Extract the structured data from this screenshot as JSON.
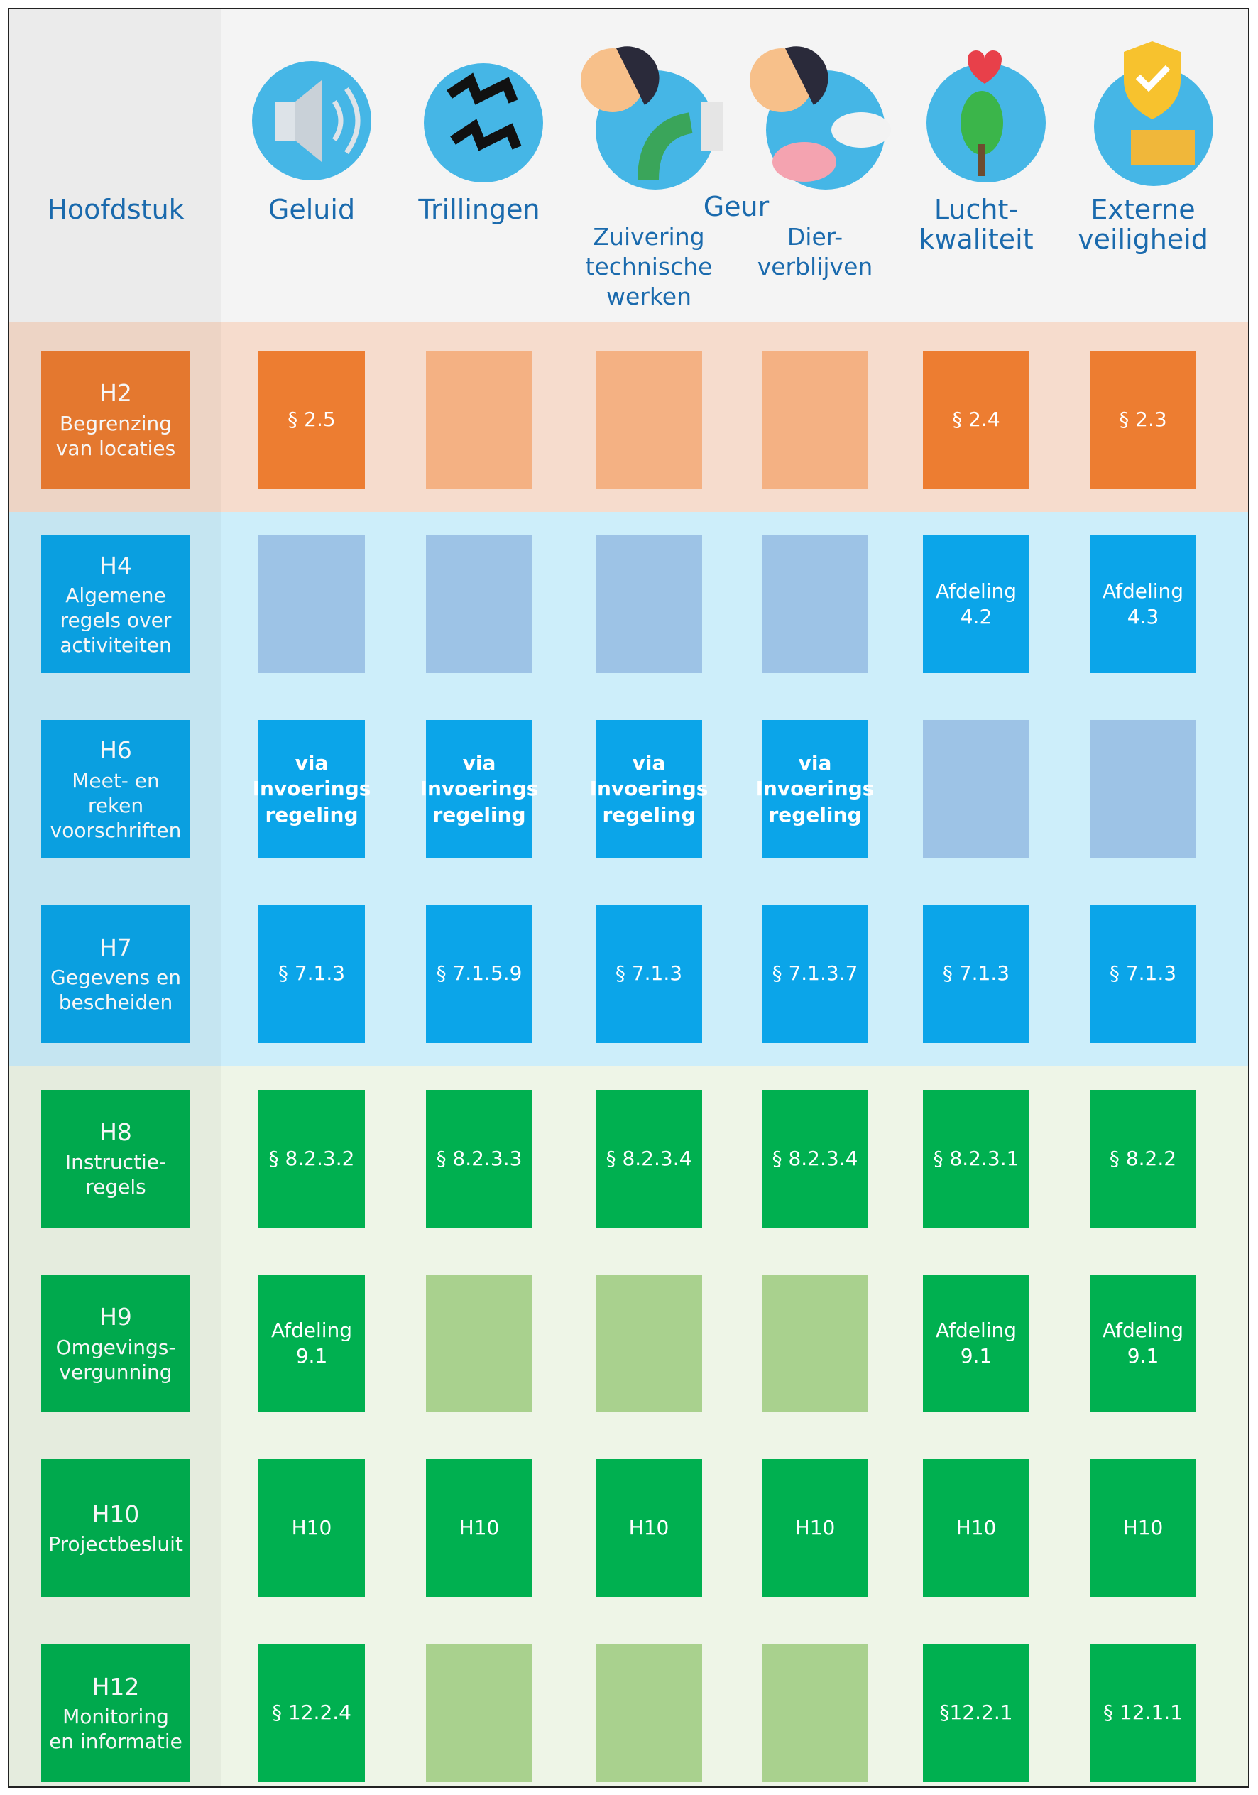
{
  "header": {
    "chapter_label": "Hoofdstuk",
    "group_label": "Geur",
    "columns": [
      "Geluid",
      "Trillingen",
      "Zuivering\ntechnische\nwerken",
      "Dier-\nverblijven",
      "Lucht-\nkwaliteit",
      "Externe\nveiligheid"
    ]
  },
  "sections": [
    {
      "band_color": "#f6dccd",
      "dark": "#ed7d31",
      "light": "#f4b183",
      "rows": [
        {
          "code": "H2",
          "label": "Begrenzing\nvan locaties",
          "cells": [
            "§ 2.5",
            null,
            null,
            null,
            "§ 2.4",
            "§ 2.3"
          ]
        }
      ]
    },
    {
      "band_color": "#cdeefa",
      "dark": "#0ba5e9",
      "light": "#9dc3e6",
      "rows": [
        {
          "code": "H4",
          "label": "Algemene\nregels over\nactiviteiten",
          "cells": [
            null,
            null,
            null,
            null,
            "Afdeling\n4.2",
            "Afdeling\n4.3"
          ]
        },
        {
          "code": "H6",
          "label": "Meet- en\nreken\nvoorschriften",
          "font_weight": "bold",
          "cells": [
            "via\nInvoerings\nregeling",
            "via\nInvoerings\nregeling",
            "via\nInvoerings\nregeling",
            "via\nInvoerings\nregeling",
            null,
            null
          ]
        },
        {
          "code": "H7",
          "label": "Gegevens en\nbescheiden",
          "cells": [
            "§ 7.1.3",
            "§ 7.1.5.9",
            "§ 7.1.3",
            "§ 7.1.3.7",
            "§ 7.1.3",
            "§ 7.1.3"
          ]
        }
      ]
    },
    {
      "band_color": "#eef5e7",
      "dark": "#00b050",
      "light": "#a9d18e",
      "rows": [
        {
          "code": "H8",
          "label": "Instructie-\nregels",
          "cells": [
            "§ 8.2.3.2",
            "§ 8.2.3.3",
            "§ 8.2.3.4",
            "§ 8.2.3.4",
            "§ 8.2.3.1",
            "§ 8.2.2"
          ]
        },
        {
          "code": "H9",
          "label": "Omgevings-\nvergunning",
          "cells": [
            "Afdeling\n9.1",
            null,
            null,
            null,
            "Afdeling\n9.1",
            "Afdeling\n9.1"
          ]
        },
        {
          "code": "H10",
          "label": "Projectbesluit",
          "cells": [
            "H10",
            "H10",
            "H10",
            "H10",
            "H10",
            "H10"
          ]
        },
        {
          "code": "H12",
          "label": "Monitoring\nen informatie",
          "cells": [
            "§ 12.2.4",
            null,
            null,
            null,
            "§12.2.1",
            "§ 12.1.1"
          ]
        }
      ]
    }
  ]
}
